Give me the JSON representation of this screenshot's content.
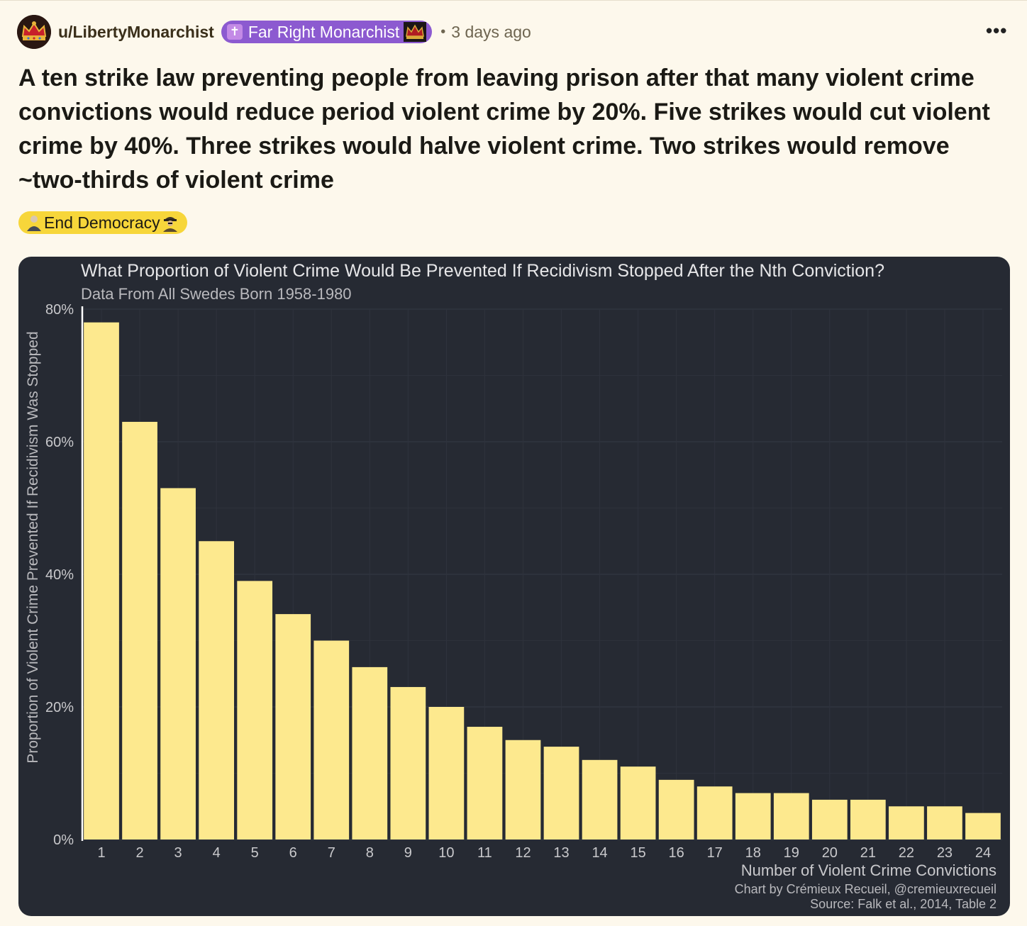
{
  "post": {
    "username": "u/LibertyMonarchist",
    "user_flair": "Far Right Monarchist",
    "user_flair_icon": "cross-icon",
    "timestamp": "3 days ago",
    "separator": "•",
    "more_label": "•••",
    "title": "A ten strike law preventing people from leaving prison after that many violent crime convictions would reduce period violent crime by 20%. Five strikes would cut violent crime by 40%. Three strikes would halve violent crime. Two strikes would remove ~two-thirds of violent crime",
    "post_flair": "End Democracy",
    "colors": {
      "background": "#fdf8ec",
      "user_flair_bg": "#8c5ad0",
      "post_flair_bg": "#f7d63a",
      "chart_bg": "#262a33",
      "bar_fill": "#fde98e"
    }
  },
  "chart_data": {
    "type": "bar",
    "title": "What Proportion of Violent Crime Would Be Prevented If Recidivism Stopped After the Nth Conviction?",
    "subtitle": "Data From All Swedes Born 1958-1980",
    "xlabel": "Number of Violent Crime Convictions",
    "ylabel": "Proportion of Violent Crime Prevented If Recidivism Was Stopped",
    "ylim": [
      0,
      80
    ],
    "yticks": [
      0,
      20,
      40,
      60,
      80
    ],
    "ytick_labels": [
      "0%",
      "20%",
      "40%",
      "60%",
      "80%"
    ],
    "categories": [
      "1",
      "2",
      "3",
      "4",
      "5",
      "6",
      "7",
      "8",
      "9",
      "10",
      "11",
      "12",
      "13",
      "14",
      "15",
      "16",
      "17",
      "18",
      "19",
      "20",
      "21",
      "22",
      "23",
      "24"
    ],
    "values": [
      78,
      63,
      53,
      45,
      39,
      34,
      30,
      26,
      23,
      20,
      17,
      15,
      14,
      12,
      11,
      9,
      8,
      7,
      7,
      6,
      6,
      5,
      5,
      4
    ],
    "credit": "Chart by Crémieux Recueil, @cremieuxrecueil",
    "source": "Source: Falk et al., 2014, Table 2",
    "grid": true
  }
}
